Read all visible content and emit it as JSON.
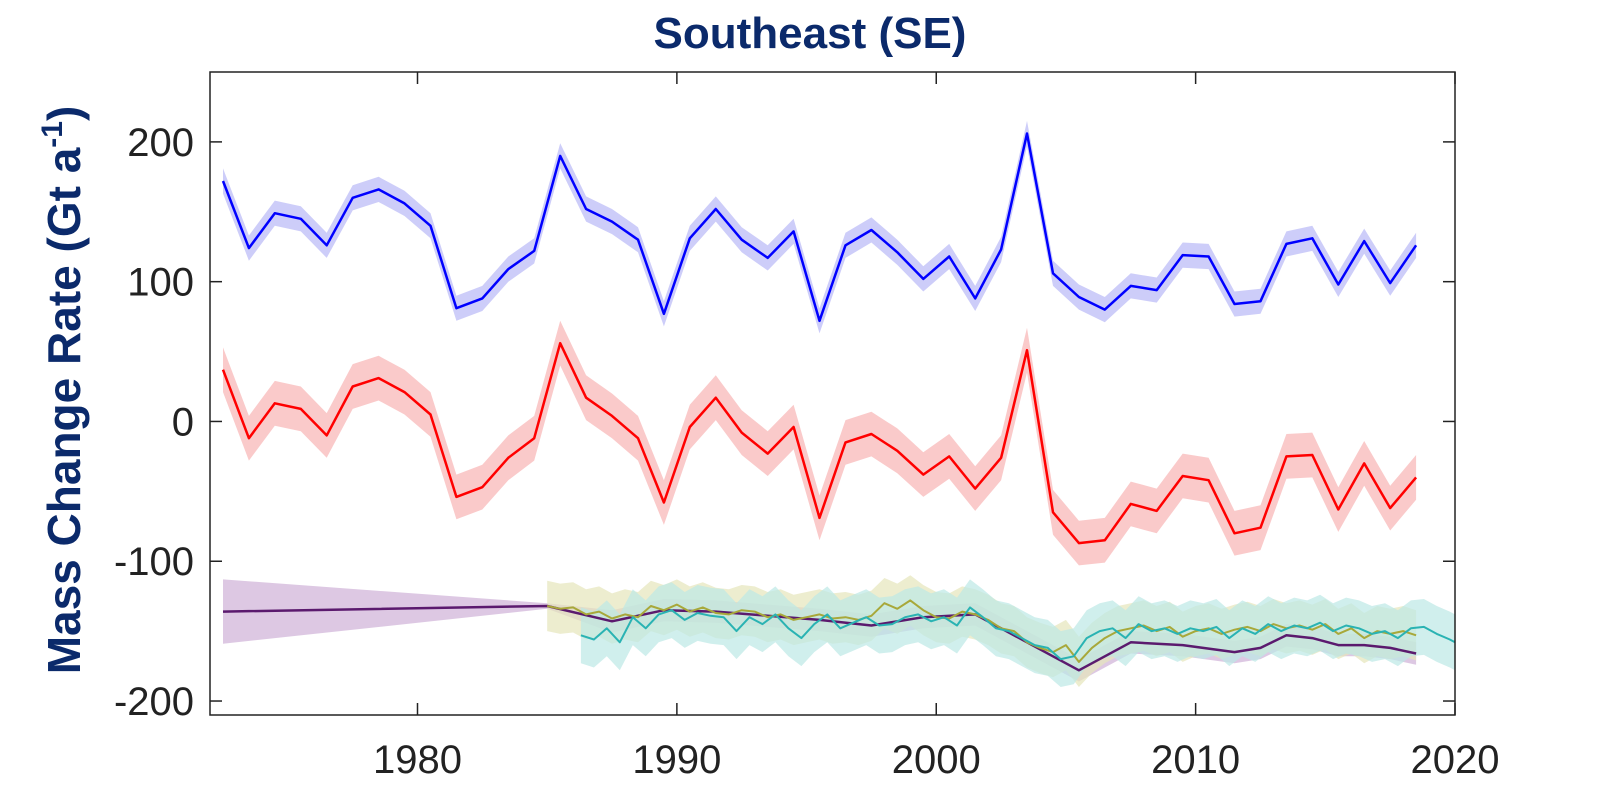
{
  "chart_data": {
    "type": "line",
    "title": "Southeast (SE)",
    "ylabel_main": "Mass Change Rate (Gt a",
    "ylabel_sup": "-1",
    "ylabel_close": ")",
    "xlim": [
      1972,
      2020
    ],
    "ylim": [
      -210,
      250
    ],
    "xticks": [
      1980,
      1990,
      2000,
      2010,
      2020
    ],
    "yticks": [
      -200,
      -100,
      0,
      100,
      200
    ],
    "ytick_labels": [
      "-200",
      "-100",
      "0",
      "100",
      "200"
    ],
    "grid": false,
    "legend": "none",
    "colors": {
      "blue": "#0000ff",
      "blue_band": "#c8c8f8",
      "red": "#ff0000",
      "red_band": "#f9c4c4",
      "purple": "#5b1a6e",
      "purple_band": "#d9c2e0",
      "teal": "#2ab3b3",
      "teal_band": "#bce8e6",
      "olive": "#a8a83a",
      "olive_band": "#e6e6bb",
      "title": "#0b2a6b"
    },
    "series": [
      {
        "key": "blue",
        "x": [
          1972.5,
          1973.5,
          1974.5,
          1975.5,
          1976.5,
          1977.5,
          1978.5,
          1979.5,
          1980.5,
          1981.5,
          1982.5,
          1983.5,
          1984.5,
          1985.5,
          1986.5,
          1987.5,
          1988.5,
          1989.5,
          1990.5,
          1991.5,
          1992.5,
          1993.5,
          1994.5,
          1995.5,
          1996.5,
          1997.5,
          1998.5,
          1999.5,
          2000.5,
          2001.5,
          2002.5,
          2003.5,
          2004.5,
          2005.5,
          2006.5,
          2007.5,
          2008.5,
          2009.5,
          2010.5,
          2011.5,
          2012.5,
          2013.5,
          2014.5,
          2015.5,
          2016.5,
          2017.5,
          2018.5
        ],
        "y": [
          172,
          124,
          149,
          145,
          126,
          160,
          166,
          156,
          140,
          81,
          88,
          109,
          122,
          190,
          152,
          143,
          130,
          77,
          131,
          152,
          130,
          117,
          136,
          72,
          126,
          137,
          121,
          102,
          118,
          88,
          123,
          206,
          106,
          89,
          80,
          97,
          94,
          119,
          118,
          84,
          86,
          127,
          131,
          98,
          129,
          99,
          126
        ],
        "band": 9
      },
      {
        "key": "red",
        "x": [
          1972.5,
          1973.5,
          1974.5,
          1975.5,
          1976.5,
          1977.5,
          1978.5,
          1979.5,
          1980.5,
          1981.5,
          1982.5,
          1983.5,
          1984.5,
          1985.5,
          1986.5,
          1987.5,
          1988.5,
          1989.5,
          1990.5,
          1991.5,
          1992.5,
          1993.5,
          1994.5,
          1995.5,
          1996.5,
          1997.5,
          1998.5,
          1999.5,
          2000.5,
          2001.5,
          2002.5,
          2003.5,
          2004.5,
          2005.5,
          2006.5,
          2007.5,
          2008.5,
          2009.5,
          2010.5,
          2011.5,
          2012.5,
          2013.5,
          2014.5,
          2015.5,
          2016.5,
          2017.5,
          2018.5
        ],
        "y": [
          37,
          -12,
          13,
          9,
          -10,
          25,
          31,
          21,
          5,
          -54,
          -47,
          -26,
          -12,
          56,
          17,
          4,
          -12,
          -58,
          -4,
          17,
          -8,
          -23,
          -4,
          -69,
          -15,
          -9,
          -21,
          -38,
          -25,
          -48,
          -26,
          51,
          -65,
          -87,
          -85,
          -59,
          -64,
          -39,
          -42,
          -80,
          -76,
          -25,
          -24,
          -63,
          -30,
          -62,
          -40
        ],
        "band": 16
      },
      {
        "key": "purple",
        "x": [
          1972.5,
          1985,
          1987.5,
          1989.5,
          1991.5,
          1993.5,
          1995.5,
          1997.5,
          1999.5,
          2001.5,
          2003.5,
          2005.5,
          2007.5,
          2009.5,
          2011.5,
          2012.5,
          2013.5,
          2014.5,
          2015.5,
          2016.5,
          2017.5,
          2018.5
        ],
        "y": [
          -136,
          -132,
          -143,
          -135,
          -136,
          -139,
          -142,
          -146,
          -140,
          -138,
          -158,
          -178,
          -158,
          -160,
          -165,
          -162,
          -153,
          -155,
          -160,
          -160,
          -162,
          -166
        ],
        "band": [
          23,
          2,
          8,
          8,
          8,
          8,
          8,
          8,
          8,
          8,
          8,
          8,
          8,
          8,
          8,
          8,
          8,
          8,
          8,
          8,
          8,
          8
        ]
      },
      {
        "key": "teal",
        "x": [
          1986.3,
          1986.8,
          1987.3,
          1987.8,
          1988.3,
          1988.8,
          1989.3,
          1989.8,
          1990.3,
          1990.8,
          1991.3,
          1991.8,
          1992.3,
          1992.8,
          1993.3,
          1993.8,
          1994.3,
          1994.8,
          1995.3,
          1995.8,
          1996.3,
          1996.8,
          1997.3,
          1997.8,
          1998.3,
          1998.8,
          1999.3,
          1999.8,
          2000.3,
          2000.8,
          2001.3,
          2001.8,
          2002.3,
          2002.8,
          2003.3,
          2003.8,
          2004.3,
          2004.8,
          2005.3,
          2005.8,
          2006.3,
          2006.8,
          2007.3,
          2007.8,
          2008.3,
          2008.8,
          2009.3,
          2009.8,
          2010.3,
          2010.8,
          2011.3,
          2011.8,
          2012.3,
          2012.8,
          2013.3,
          2013.8,
          2014.3,
          2014.8,
          2015.3,
          2015.8,
          2016.3,
          2016.8,
          2017.3,
          2017.8,
          2018.3,
          2018.8,
          2019.3,
          2019.8,
          2020
        ],
        "y": [
          -153,
          -156,
          -148,
          -158,
          -140,
          -148,
          -138,
          -135,
          -142,
          -137,
          -139,
          -140,
          -150,
          -140,
          -145,
          -138,
          -148,
          -155,
          -145,
          -138,
          -148,
          -144,
          -140,
          -146,
          -145,
          -140,
          -138,
          -143,
          -140,
          -146,
          -133,
          -140,
          -148,
          -150,
          -155,
          -160,
          -162,
          -170,
          -168,
          -155,
          -150,
          -148,
          -155,
          -145,
          -150,
          -148,
          -152,
          -148,
          -150,
          -147,
          -155,
          -148,
          -152,
          -145,
          -150,
          -146,
          -148,
          -144,
          -150,
          -146,
          -148,
          -152,
          -150,
          -155,
          -148,
          -147,
          -152,
          -156,
          -158
        ],
        "band": 20
      },
      {
        "key": "olive",
        "x": [
          1985,
          1985.5,
          1986,
          1986.5,
          1987,
          1987.5,
          1988,
          1988.5,
          1989,
          1989.5,
          1990,
          1990.5,
          1991,
          1991.5,
          1992,
          1992.5,
          1993,
          1993.5,
          1994,
          1994.5,
          1995,
          1995.5,
          1996,
          1996.5,
          1997,
          1997.5,
          1998,
          1998.5,
          1999,
          1999.5,
          2000,
          2000.5,
          2001,
          2001.5,
          2002,
          2002.5,
          2003,
          2003.5,
          2004,
          2004.5,
          2005,
          2005.5,
          2006,
          2006.5,
          2007,
          2007.5,
          2008,
          2008.5,
          2009,
          2009.5,
          2010,
          2010.5,
          2011,
          2011.5,
          2012,
          2012.5,
          2013,
          2013.5,
          2014,
          2014.5,
          2015,
          2015.5,
          2016,
          2016.5,
          2017,
          2017.5,
          2018,
          2018.5
        ],
        "y": [
          -132,
          -134,
          -133,
          -138,
          -136,
          -141,
          -138,
          -140,
          -132,
          -135,
          -131,
          -136,
          -133,
          -137,
          -138,
          -135,
          -136,
          -140,
          -138,
          -142,
          -140,
          -138,
          -141,
          -140,
          -142,
          -139,
          -130,
          -134,
          -128,
          -135,
          -140,
          -141,
          -136,
          -138,
          -142,
          -148,
          -150,
          -158,
          -162,
          -165,
          -160,
          -172,
          -162,
          -155,
          -150,
          -148,
          -146,
          -150,
          -147,
          -154,
          -150,
          -148,
          -152,
          -149,
          -147,
          -150,
          -145,
          -148,
          -146,
          -149,
          -145,
          -152,
          -148,
          -155,
          -150,
          -152,
          -150,
          -153
        ],
        "band": 18
      }
    ]
  }
}
